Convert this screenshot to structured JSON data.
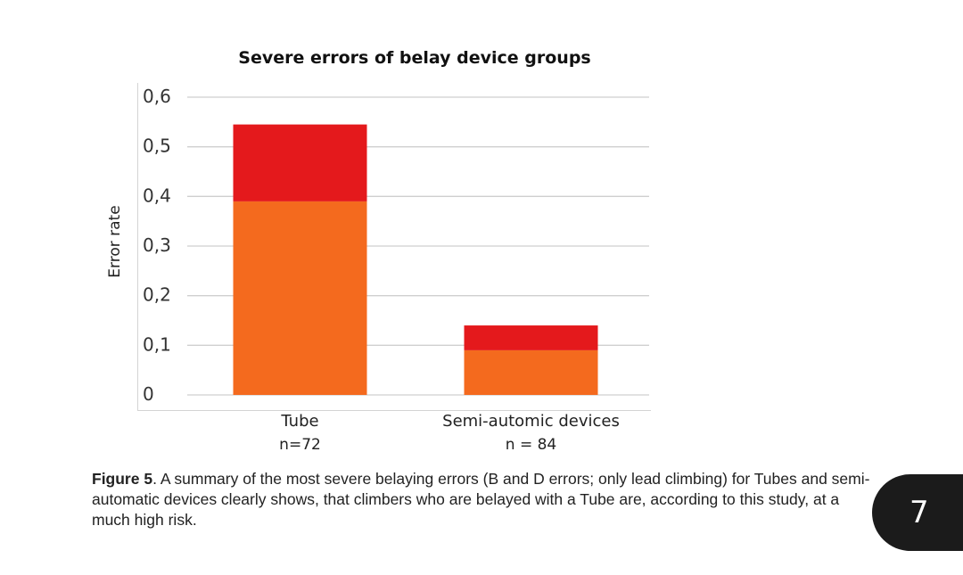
{
  "chart_data": {
    "type": "bar",
    "stacked": true,
    "title": "Severe errors of belay device groups",
    "ylabel": "Error rate",
    "ylim": [
      0,
      0.6
    ],
    "yticks": [
      "0",
      "0,1",
      "0,2",
      "0,3",
      "0,4",
      "0,5",
      "0,6"
    ],
    "grid": true,
    "categories": [
      "Tube",
      "Semi-automic devices"
    ],
    "category_sublabels": [
      "n=72",
      "n = 84"
    ],
    "series": [
      {
        "values": [
          0.39,
          0.09
        ],
        "color": "#f46a1e"
      },
      {
        "values": [
          0.155,
          0.05
        ],
        "color": "#e4191c"
      }
    ]
  },
  "caption": {
    "label": "Figure 5",
    "text": ". A summary of the most severe belaying errors (B and D errors; only lead climbing) for Tubes and semi-automatic devices clearly shows, that climbers who are belayed with a Tube are, according to this study, at a much high risk."
  },
  "page_number": "7"
}
